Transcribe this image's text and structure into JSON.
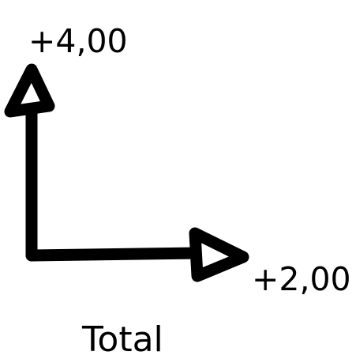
{
  "labels": {
    "y_value": "+4,00",
    "x_value": "+2,00",
    "caption": "Total"
  },
  "colors": {
    "stroke": "#000000",
    "background": "#ffffff"
  },
  "icons": {
    "up_arrow": "arrow-up-icon",
    "right_arrow": "arrow-right-icon"
  }
}
